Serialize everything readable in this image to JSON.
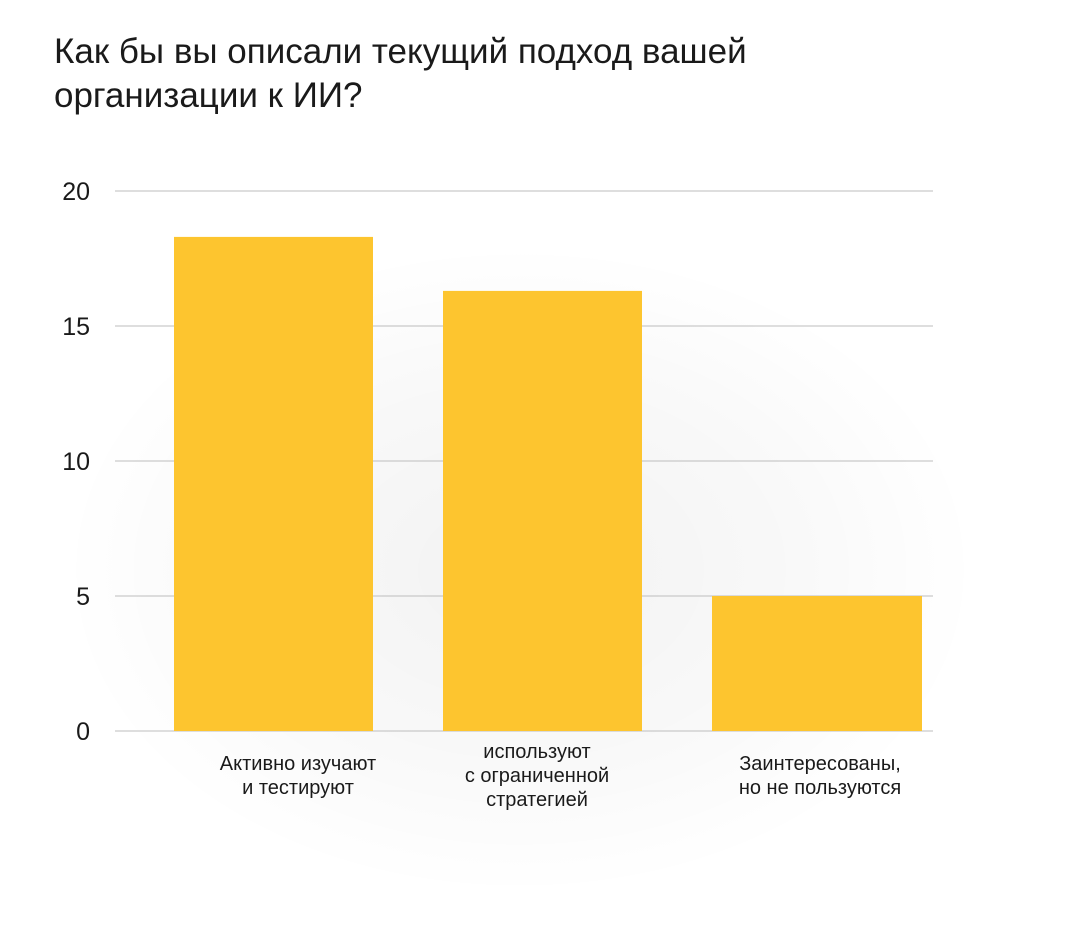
{
  "chart_data": {
    "type": "bar",
    "title": "Как бы вы описали текущий подход вашей организации к ИИ?",
    "xlabel": "",
    "ylabel": "",
    "categories": [
      [
        "Активно изучают",
        "и тестируют"
      ],
      [
        "используют",
        "с ограниченной",
        "стратегией"
      ],
      [
        "Заинтересованы,",
        "но не пользуются"
      ]
    ],
    "values": [
      18.3,
      16.3,
      5.0
    ],
    "ylim": [
      0,
      20
    ],
    "yticks": [
      0,
      5,
      10,
      15,
      20
    ],
    "grid": true,
    "legend": "none",
    "colors": {
      "bar": "#FDC52F",
      "grid": "#bdbdbd",
      "text": "#1a1a1a"
    }
  }
}
